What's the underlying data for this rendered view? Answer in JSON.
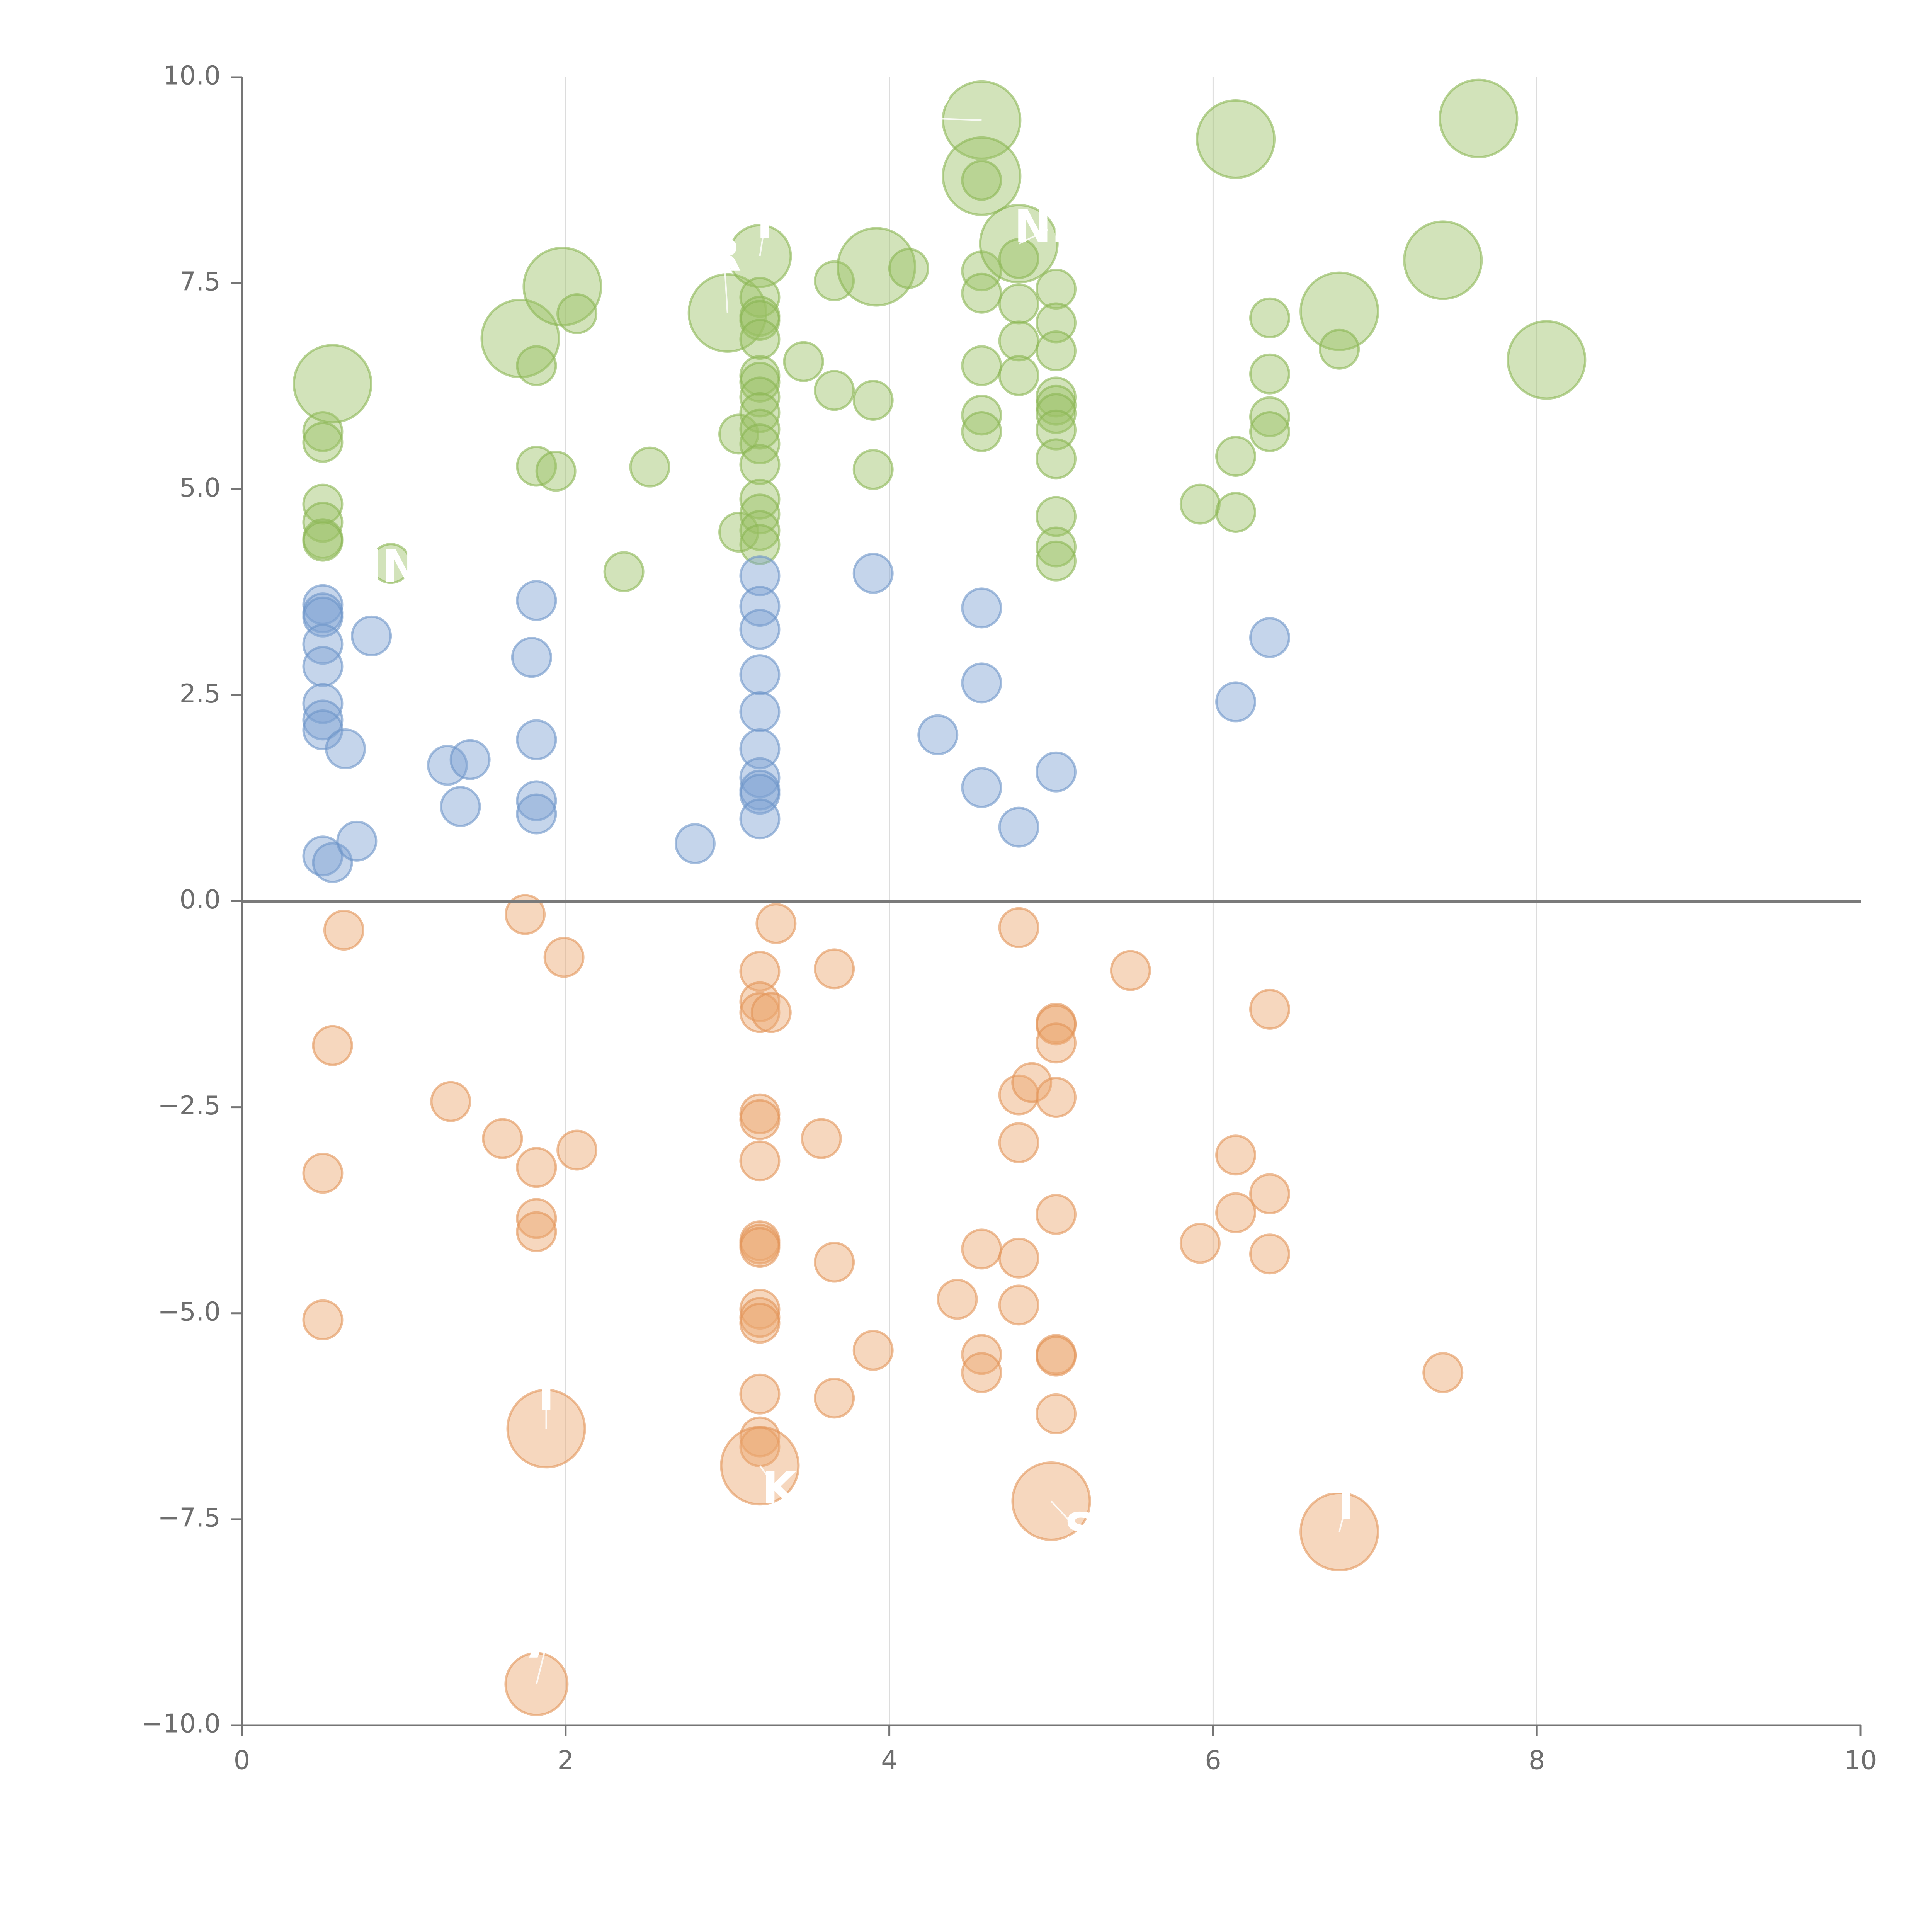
{
  "chart_data": {
    "type": "scatter",
    "title": "",
    "xlabel": "",
    "ylabel": "",
    "xlim": [
      0,
      10
    ],
    "ylim": [
      -10,
      10
    ],
    "x_ticks": [
      0,
      2,
      4,
      6,
      8,
      10
    ],
    "x_tick_labels": [
      "0",
      "2",
      "4",
      "6",
      "8",
      "10"
    ],
    "y_ticks": [
      -10,
      -7.5,
      -5,
      -2.5,
      0,
      2.5,
      5,
      7.5,
      10
    ],
    "y_tick_labels": [
      "−10.0",
      "−7.5",
      "−5.0",
      "−2.5",
      "0.0",
      "2.5",
      "5.0",
      "7.5",
      "10.0"
    ],
    "vertical_grid_at": [
      2,
      4,
      6,
      8
    ],
    "zero_line": 0,
    "series": [
      {
        "name": "green",
        "color": "#9cc265",
        "stroke": "#8ab553",
        "points": [
          {
            "x": 0.5,
            "y": 5.7,
            "s": 1
          },
          {
            "x": 0.5,
            "y": 5.57,
            "s": 1
          },
          {
            "x": 0.5,
            "y": 4.82,
            "s": 1
          },
          {
            "x": 0.5,
            "y": 4.6,
            "s": 1
          },
          {
            "x": 0.5,
            "y": 4.4,
            "s": 1
          },
          {
            "x": 0.5,
            "y": 4.37,
            "s": 1
          },
          {
            "x": 0.56,
            "y": 6.28,
            "s": 2
          },
          {
            "x": 0.92,
            "y": 4.1,
            "s": 1
          },
          {
            "x": 1.72,
            "y": 6.83,
            "s": 2
          },
          {
            "x": 1.82,
            "y": 6.5,
            "s": 1
          },
          {
            "x": 1.82,
            "y": 5.28,
            "s": 1
          },
          {
            "x": 1.94,
            "y": 5.22,
            "s": 1
          },
          {
            "x": 1.98,
            "y": 7.46,
            "s": 2
          },
          {
            "x": 2.07,
            "y": 7.13,
            "s": 1
          },
          {
            "x": 2.36,
            "y": 4.0,
            "s": 1
          },
          {
            "x": 2.52,
            "y": 5.27,
            "s": 1
          },
          {
            "x": 3.0,
            "y": 7.14,
            "s": 2
          },
          {
            "x": 3.07,
            "y": 5.67,
            "s": 1
          },
          {
            "x": 3.07,
            "y": 4.48,
            "s": 1
          },
          {
            "x": 3.2,
            "y": 7.83,
            "s": 1.6
          },
          {
            "x": 3.2,
            "y": 7.33,
            "s": 1
          },
          {
            "x": 3.2,
            "y": 7.1,
            "s": 1
          },
          {
            "x": 3.2,
            "y": 7.05,
            "s": 1
          },
          {
            "x": 3.2,
            "y": 6.82,
            "s": 1
          },
          {
            "x": 3.2,
            "y": 6.38,
            "s": 1
          },
          {
            "x": 3.2,
            "y": 6.3,
            "s": 1
          },
          {
            "x": 3.2,
            "y": 6.12,
            "s": 1
          },
          {
            "x": 3.2,
            "y": 5.93,
            "s": 1
          },
          {
            "x": 3.2,
            "y": 5.73,
            "s": 1
          },
          {
            "x": 3.2,
            "y": 5.55,
            "s": 1
          },
          {
            "x": 3.2,
            "y": 5.3,
            "s": 1
          },
          {
            "x": 3.2,
            "y": 4.88,
            "s": 1
          },
          {
            "x": 3.2,
            "y": 4.7,
            "s": 1
          },
          {
            "x": 3.2,
            "y": 4.5,
            "s": 1
          },
          {
            "x": 3.2,
            "y": 4.33,
            "s": 1
          },
          {
            "x": 3.47,
            "y": 6.55,
            "s": 1
          },
          {
            "x": 3.66,
            "y": 7.53,
            "s": 1
          },
          {
            "x": 3.66,
            "y": 6.2,
            "s": 1
          },
          {
            "x": 3.9,
            "y": 6.08,
            "s": 1
          },
          {
            "x": 3.9,
            "y": 5.24,
            "s": 1
          },
          {
            "x": 3.92,
            "y": 7.7,
            "s": 2
          },
          {
            "x": 4.12,
            "y": 7.68,
            "s": 1
          },
          {
            "x": 4.57,
            "y": 9.48,
            "s": 2
          },
          {
            "x": 4.57,
            "y": 8.8,
            "s": 2
          },
          {
            "x": 4.57,
            "y": 8.75,
            "s": 1
          },
          {
            "x": 4.57,
            "y": 7.65,
            "s": 1
          },
          {
            "x": 4.57,
            "y": 7.38,
            "s": 1
          },
          {
            "x": 4.57,
            "y": 6.5,
            "s": 1
          },
          {
            "x": 4.57,
            "y": 5.9,
            "s": 1
          },
          {
            "x": 4.57,
            "y": 5.7,
            "s": 1
          },
          {
            "x": 4.8,
            "y": 7.98,
            "s": 2
          },
          {
            "x": 4.8,
            "y": 7.8,
            "s": 1
          },
          {
            "x": 4.8,
            "y": 7.25,
            "s": 1
          },
          {
            "x": 4.8,
            "y": 6.8,
            "s": 1
          },
          {
            "x": 4.8,
            "y": 6.38,
            "s": 1
          },
          {
            "x": 5.03,
            "y": 7.43,
            "s": 1
          },
          {
            "x": 5.03,
            "y": 7.02,
            "s": 1
          },
          {
            "x": 5.03,
            "y": 6.68,
            "s": 1
          },
          {
            "x": 5.03,
            "y": 6.12,
            "s": 1
          },
          {
            "x": 5.03,
            "y": 6.02,
            "s": 1
          },
          {
            "x": 5.03,
            "y": 5.92,
            "s": 1
          },
          {
            "x": 5.03,
            "y": 5.72,
            "s": 1
          },
          {
            "x": 5.03,
            "y": 5.37,
            "s": 1
          },
          {
            "x": 5.03,
            "y": 4.67,
            "s": 1
          },
          {
            "x": 5.03,
            "y": 4.3,
            "s": 1
          },
          {
            "x": 5.03,
            "y": 4.13,
            "s": 1
          },
          {
            "x": 5.92,
            "y": 4.82,
            "s": 1
          },
          {
            "x": 6.14,
            "y": 9.25,
            "s": 2
          },
          {
            "x": 6.14,
            "y": 5.4,
            "s": 1
          },
          {
            "x": 6.14,
            "y": 4.72,
            "s": 1
          },
          {
            "x": 6.35,
            "y": 7.08,
            "s": 1
          },
          {
            "x": 6.35,
            "y": 6.4,
            "s": 1
          },
          {
            "x": 6.35,
            "y": 5.88,
            "s": 1
          },
          {
            "x": 6.35,
            "y": 5.7,
            "s": 1
          },
          {
            "x": 6.78,
            "y": 7.16,
            "s": 2
          },
          {
            "x": 6.78,
            "y": 6.7,
            "s": 1
          },
          {
            "x": 7.42,
            "y": 7.78,
            "s": 2
          },
          {
            "x": 7.64,
            "y": 9.5,
            "s": 2
          },
          {
            "x": 8.06,
            "y": 6.57,
            "s": 2
          }
        ]
      },
      {
        "name": "blue",
        "color": "#7ea2d2",
        "stroke": "#6d94c8",
        "points": [
          {
            "x": 0.5,
            "y": 3.6,
            "s": 1
          },
          {
            "x": 0.5,
            "y": 3.5,
            "s": 1
          },
          {
            "x": 0.5,
            "y": 3.45,
            "s": 1
          },
          {
            "x": 0.5,
            "y": 3.12,
            "s": 1
          },
          {
            "x": 0.5,
            "y": 2.85,
            "s": 1
          },
          {
            "x": 0.5,
            "y": 2.4,
            "s": 1
          },
          {
            "x": 0.5,
            "y": 2.2,
            "s": 1
          },
          {
            "x": 0.5,
            "y": 2.08,
            "s": 1
          },
          {
            "x": 0.5,
            "y": 0.55,
            "s": 1
          },
          {
            "x": 0.56,
            "y": 0.47,
            "s": 1
          },
          {
            "x": 0.64,
            "y": 1.85,
            "s": 1
          },
          {
            "x": 0.71,
            "y": 0.73,
            "s": 1
          },
          {
            "x": 0.8,
            "y": 3.22,
            "s": 1
          },
          {
            "x": 1.27,
            "y": 1.65,
            "s": 1
          },
          {
            "x": 1.35,
            "y": 1.15,
            "s": 1
          },
          {
            "x": 1.41,
            "y": 1.72,
            "s": 1
          },
          {
            "x": 1.79,
            "y": 2.96,
            "s": 1
          },
          {
            "x": 1.82,
            "y": 3.65,
            "s": 1
          },
          {
            "x": 1.82,
            "y": 1.96,
            "s": 1
          },
          {
            "x": 1.82,
            "y": 1.22,
            "s": 1
          },
          {
            "x": 1.82,
            "y": 1.06,
            "s": 1
          },
          {
            "x": 2.8,
            "y": 0.7,
            "s": 1
          },
          {
            "x": 3.2,
            "y": 3.95,
            "s": 1
          },
          {
            "x": 3.2,
            "y": 3.58,
            "s": 1
          },
          {
            "x": 3.2,
            "y": 3.3,
            "s": 1
          },
          {
            "x": 3.2,
            "y": 2.75,
            "s": 1
          },
          {
            "x": 3.2,
            "y": 2.3,
            "s": 1
          },
          {
            "x": 3.2,
            "y": 1.85,
            "s": 1
          },
          {
            "x": 3.2,
            "y": 1.5,
            "s": 1
          },
          {
            "x": 3.2,
            "y": 1.35,
            "s": 1
          },
          {
            "x": 3.2,
            "y": 1.3,
            "s": 1
          },
          {
            "x": 3.2,
            "y": 1.0,
            "s": 1
          },
          {
            "x": 3.9,
            "y": 3.98,
            "s": 1
          },
          {
            "x": 4.3,
            "y": 2.02,
            "s": 1
          },
          {
            "x": 4.57,
            "y": 3.56,
            "s": 1
          },
          {
            "x": 4.57,
            "y": 2.65,
            "s": 1
          },
          {
            "x": 4.57,
            "y": 1.38,
            "s": 1
          },
          {
            "x": 4.8,
            "y": 0.9,
            "s": 1
          },
          {
            "x": 5.03,
            "y": 1.57,
            "s": 1
          },
          {
            "x": 6.14,
            "y": 2.42,
            "s": 1
          },
          {
            "x": 6.35,
            "y": 3.2,
            "s": 1
          }
        ]
      },
      {
        "name": "orange",
        "color": "#eca66f",
        "stroke": "#e39558",
        "points": [
          {
            "x": 0.5,
            "y": -3.3,
            "s": 1
          },
          {
            "x": 0.5,
            "y": -5.08,
            "s": 1
          },
          {
            "x": 0.56,
            "y": -1.75,
            "s": 1
          },
          {
            "x": 0.63,
            "y": -0.35,
            "s": 1
          },
          {
            "x": 1.29,
            "y": -2.43,
            "s": 1
          },
          {
            "x": 1.61,
            "y": -2.88,
            "s": 1
          },
          {
            "x": 1.75,
            "y": -0.16,
            "s": 1
          },
          {
            "x": 1.82,
            "y": -3.23,
            "s": 1
          },
          {
            "x": 1.82,
            "y": -3.85,
            "s": 1
          },
          {
            "x": 1.82,
            "y": -4.01,
            "s": 1
          },
          {
            "x": 1.82,
            "y": -9.5,
            "s": 1.6
          },
          {
            "x": 1.88,
            "y": -6.4,
            "s": 2
          },
          {
            "x": 1.99,
            "y": -0.68,
            "s": 1
          },
          {
            "x": 2.07,
            "y": -3.02,
            "s": 1
          },
          {
            "x": 3.2,
            "y": -0.85,
            "s": 1
          },
          {
            "x": 3.2,
            "y": -1.22,
            "s": 1
          },
          {
            "x": 3.2,
            "y": -1.35,
            "s": 1
          },
          {
            "x": 3.27,
            "y": -1.35,
            "s": 1
          },
          {
            "x": 3.3,
            "y": -0.27,
            "s": 1
          },
          {
            "x": 3.2,
            "y": -2.58,
            "s": 1
          },
          {
            "x": 3.2,
            "y": -2.65,
            "s": 1
          },
          {
            "x": 3.2,
            "y": -3.15,
            "s": 1
          },
          {
            "x": 3.2,
            "y": -4.12,
            "s": 1
          },
          {
            "x": 3.2,
            "y": -4.16,
            "s": 1
          },
          {
            "x": 3.2,
            "y": -4.2,
            "s": 1
          },
          {
            "x": 3.2,
            "y": -4.95,
            "s": 1
          },
          {
            "x": 3.2,
            "y": -5.05,
            "s": 1
          },
          {
            "x": 3.2,
            "y": -5.12,
            "s": 1
          },
          {
            "x": 3.2,
            "y": -5.98,
            "s": 1
          },
          {
            "x": 3.2,
            "y": -6.5,
            "s": 1
          },
          {
            "x": 3.2,
            "y": -6.62,
            "s": 1
          },
          {
            "x": 3.2,
            "y": -6.85,
            "s": 2
          },
          {
            "x": 3.58,
            "y": -2.88,
            "s": 1
          },
          {
            "x": 3.66,
            "y": -0.82,
            "s": 1
          },
          {
            "x": 3.66,
            "y": -4.38,
            "s": 1
          },
          {
            "x": 3.66,
            "y": -6.03,
            "s": 1
          },
          {
            "x": 3.9,
            "y": -5.45,
            "s": 1
          },
          {
            "x": 4.42,
            "y": -4.83,
            "s": 1
          },
          {
            "x": 4.57,
            "y": -4.22,
            "s": 1
          },
          {
            "x": 4.57,
            "y": -5.5,
            "s": 1
          },
          {
            "x": 4.57,
            "y": -5.72,
            "s": 1
          },
          {
            "x": 4.8,
            "y": -0.32,
            "s": 1
          },
          {
            "x": 4.8,
            "y": -2.35,
            "s": 1
          },
          {
            "x": 4.88,
            "y": -2.2,
            "s": 1
          },
          {
            "x": 4.8,
            "y": -2.93,
            "s": 1
          },
          {
            "x": 4.8,
            "y": -4.33,
            "s": 1
          },
          {
            "x": 4.8,
            "y": -4.9,
            "s": 1
          },
          {
            "x": 5.03,
            "y": -1.48,
            "s": 1
          },
          {
            "x": 5.03,
            "y": -1.5,
            "s": 1
          },
          {
            "x": 5.03,
            "y": -1.72,
            "s": 1
          },
          {
            "x": 5.03,
            "y": -2.38,
            "s": 1
          },
          {
            "x": 5.03,
            "y": -3.8,
            "s": 1
          },
          {
            "x": 5.03,
            "y": -5.5,
            "s": 1
          },
          {
            "x": 5.03,
            "y": -5.52,
            "s": 1
          },
          {
            "x": 5.03,
            "y": -6.22,
            "s": 1
          },
          {
            "x": 5.0,
            "y": -7.28,
            "s": 2
          },
          {
            "x": 5.49,
            "y": -0.84,
            "s": 1
          },
          {
            "x": 5.92,
            "y": -4.15,
            "s": 1
          },
          {
            "x": 6.14,
            "y": -3.08,
            "s": 1
          },
          {
            "x": 6.14,
            "y": -3.78,
            "s": 1
          },
          {
            "x": 6.35,
            "y": -1.31,
            "s": 1
          },
          {
            "x": 6.35,
            "y": -3.55,
            "s": 1
          },
          {
            "x": 6.35,
            "y": -4.28,
            "s": 1
          },
          {
            "x": 6.78,
            "y": -7.65,
            "s": 2
          },
          {
            "x": 7.42,
            "y": -5.72,
            "s": 1
          }
        ]
      }
    ],
    "annotations": [
      {
        "text": "IN",
        "x": 0.93,
        "y": 4.03,
        "px": 0.92,
        "py": 4.1
      },
      {
        "text": "R",
        "x": 2.98,
        "y": 7.8,
        "px": 3.0,
        "py": 7.14
      },
      {
        "text": "T",
        "x": 3.23,
        "y": 8.2,
        "px": 3.2,
        "py": 7.83
      },
      {
        "text": "Y",
        "x": 4.27,
        "y": 9.5,
        "px": 4.57,
        "py": 9.48
      },
      {
        "text": "NE",
        "x": 4.98,
        "y": 8.15,
        "px": 4.8,
        "py": 7.98
      },
      {
        "text": "T",
        "x": 1.88,
        "y": -6.02,
        "px": 1.88,
        "py": -6.4
      },
      {
        "text": "K",
        "x": 3.32,
        "y": -7.16,
        "px": 3.2,
        "py": -6.85
      },
      {
        "text": "S",
        "x": 5.18,
        "y": -7.66,
        "px": 5.0,
        "py": -7.28
      },
      {
        "text": "T",
        "x": 6.82,
        "y": -7.35,
        "px": 6.78,
        "py": -7.65
      },
      {
        "text": "A",
        "x": 1.88,
        "y": -9.03,
        "px": 1.82,
        "py": -9.5
      }
    ]
  }
}
